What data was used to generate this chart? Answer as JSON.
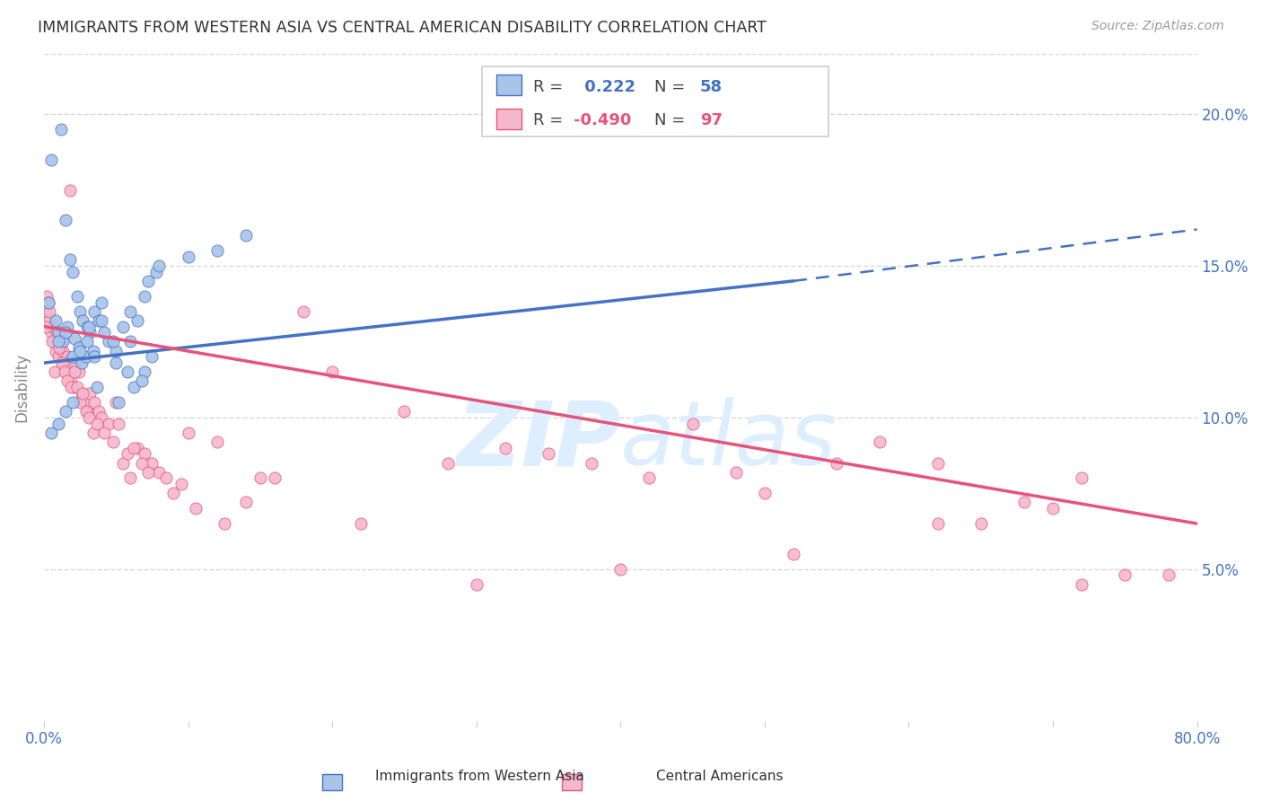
{
  "title": "IMMIGRANTS FROM WESTERN ASIA VS CENTRAL AMERICAN DISABILITY CORRELATION CHART",
  "source": "Source: ZipAtlas.com",
  "ylabel": "Disability",
  "watermark": "ZIPatlas",
  "blue_R": 0.222,
  "blue_N": 58,
  "pink_R": -0.49,
  "pink_N": 97,
  "blue_scatter_x": [
    0.5,
    1.2,
    1.5,
    1.8,
    2.0,
    2.3,
    2.5,
    2.7,
    3.0,
    3.2,
    3.5,
    3.8,
    4.0,
    4.5,
    5.0,
    5.5,
    6.0,
    6.5,
    7.0,
    7.5,
    0.3,
    0.8,
    1.0,
    1.3,
    1.6,
    2.1,
    2.4,
    2.6,
    2.9,
    3.1,
    3.4,
    3.7,
    4.2,
    4.8,
    5.2,
    5.8,
    6.2,
    6.8,
    7.2,
    7.8,
    1.0,
    1.5,
    2.0,
    2.5,
    3.0,
    3.5,
    4.0,
    5.0,
    6.0,
    7.0,
    8.0,
    10.0,
    12.0,
    14.0,
    0.5,
    1.0,
    1.5,
    2.0
  ],
  "blue_scatter_y": [
    18.5,
    19.5,
    16.5,
    15.2,
    14.8,
    14.0,
    13.5,
    13.2,
    13.0,
    12.8,
    13.5,
    13.2,
    13.8,
    12.5,
    12.2,
    13.0,
    12.5,
    13.2,
    11.5,
    12.0,
    13.8,
    13.2,
    12.8,
    12.5,
    13.0,
    12.6,
    12.3,
    11.8,
    12.0,
    13.0,
    12.2,
    11.0,
    12.8,
    12.5,
    10.5,
    11.5,
    11.0,
    11.2,
    14.5,
    14.8,
    12.5,
    12.8,
    12.0,
    12.2,
    12.5,
    12.0,
    13.2,
    11.8,
    13.5,
    14.0,
    15.0,
    15.3,
    15.5,
    16.0,
    9.5,
    9.8,
    10.2,
    10.5
  ],
  "pink_scatter_x": [
    0.1,
    0.2,
    0.3,
    0.4,
    0.5,
    0.6,
    0.7,
    0.8,
    0.9,
    1.0,
    1.1,
    1.2,
    1.3,
    1.4,
    1.5,
    1.6,
    1.7,
    1.8,
    1.9,
    2.0,
    2.2,
    2.4,
    2.6,
    2.8,
    3.0,
    3.2,
    3.5,
    3.8,
    4.0,
    4.5,
    5.0,
    5.5,
    6.0,
    6.5,
    7.0,
    7.5,
    8.0,
    9.0,
    10.0,
    12.0,
    15.0,
    18.0,
    20.0,
    25.0,
    28.0,
    32.0,
    35.0,
    38.0,
    42.0,
    45.0,
    48.0,
    50.0,
    55.0,
    58.0,
    62.0,
    65.0,
    68.0,
    70.0,
    72.0,
    75.0,
    0.15,
    0.35,
    0.55,
    0.75,
    1.05,
    1.25,
    1.45,
    1.65,
    1.85,
    2.1,
    2.3,
    2.5,
    2.7,
    2.9,
    3.1,
    3.4,
    3.7,
    4.2,
    4.8,
    5.2,
    5.8,
    6.2,
    6.8,
    7.2,
    8.5,
    9.5,
    10.5,
    12.5,
    14.0,
    16.0,
    22.0,
    30.0,
    40.0,
    52.0,
    62.0,
    72.0,
    78.0
  ],
  "pink_scatter_y": [
    13.5,
    14.0,
    13.8,
    13.2,
    12.8,
    13.0,
    12.5,
    12.2,
    12.8,
    12.0,
    12.4,
    12.6,
    12.2,
    11.8,
    11.5,
    12.0,
    11.8,
    17.5,
    11.2,
    11.0,
    11.8,
    11.5,
    10.8,
    10.5,
    10.2,
    10.8,
    10.5,
    10.2,
    10.0,
    9.8,
    10.5,
    8.5,
    8.0,
    9.0,
    8.8,
    8.5,
    8.2,
    7.5,
    9.5,
    9.2,
    8.0,
    13.5,
    11.5,
    10.2,
    8.5,
    9.0,
    8.8,
    8.5,
    8.0,
    9.8,
    8.2,
    7.5,
    8.5,
    9.2,
    8.5,
    6.5,
    7.2,
    7.0,
    8.0,
    4.8,
    13.0,
    13.5,
    12.5,
    11.5,
    12.3,
    11.8,
    11.5,
    11.2,
    11.0,
    11.5,
    11.0,
    10.5,
    10.8,
    10.2,
    10.0,
    9.5,
    9.8,
    9.5,
    9.2,
    9.8,
    8.8,
    9.0,
    8.5,
    8.2,
    8.0,
    7.8,
    7.0,
    6.5,
    7.2,
    8.0,
    6.5,
    4.5,
    5.0,
    5.5,
    6.5,
    4.5,
    4.8
  ],
  "blue_line_start_x": 0,
  "blue_line_start_y": 11.8,
  "blue_line_solid_end_x": 52,
  "blue_line_solid_end_y": 14.5,
  "blue_line_dash_end_x": 80,
  "blue_line_dash_end_y": 16.2,
  "pink_line_start_x": 0,
  "pink_line_start_y": 13.0,
  "pink_line_end_x": 80,
  "pink_line_end_y": 6.5,
  "xlim": [
    0,
    80
  ],
  "ylim": [
    0,
    22
  ],
  "yticks": [
    5,
    10,
    15,
    20
  ],
  "ytick_labels": [
    "5.0%",
    "10.0%",
    "15.0%",
    "20.0%"
  ],
  "xticks": [
    0,
    10,
    20,
    30,
    40,
    50,
    60,
    70,
    80
  ],
  "xtick_labels": [
    "0.0%",
    "",
    "",
    "",
    "",
    "",
    "",
    "",
    "80.0%"
  ],
  "grid_color": "#d8d8d8",
  "blue_line_color": "#4472C4",
  "pink_line_color": "#E8537A",
  "blue_dot_color": "#a8c4e8",
  "pink_dot_color": "#f4b8cc",
  "tick_color": "#4472C4",
  "title_color": "#333333",
  "watermark_color": "#ddeeff"
}
